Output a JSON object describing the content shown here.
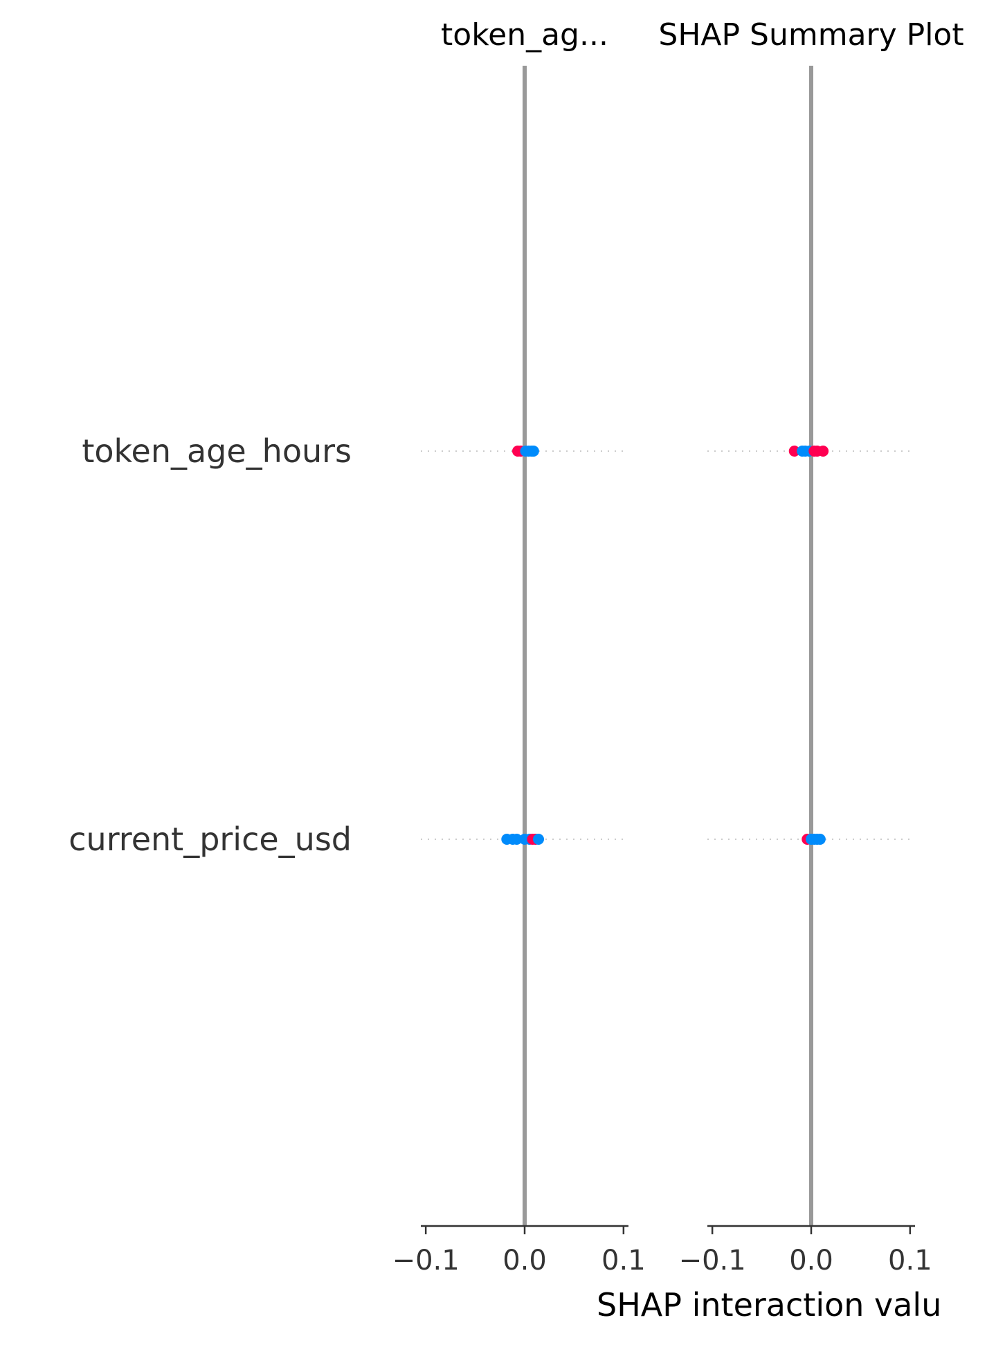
{
  "chart_data": {
    "type": "scatter",
    "kind": "shap-interaction-summary",
    "xlabel": "SHAP interaction valu",
    "features": [
      "token_age_hours",
      "current_price_usd"
    ],
    "panels": [
      {
        "title": "token_ag...",
        "xlim": [
          -0.105,
          0.105
        ],
        "xticks": [
          -0.1,
          0.0,
          0.1
        ],
        "xtick_labels": [
          "−0.1",
          "0.0",
          "0.1"
        ],
        "rows": [
          {
            "feature": "token_age_hours",
            "points": [
              {
                "x": -0.007,
                "color": "high"
              },
              {
                "x": -0.004,
                "color": "high"
              },
              {
                "x": 0.001,
                "color": "low"
              },
              {
                "x": 0.004,
                "color": "low"
              },
              {
                "x": 0.007,
                "color": "low"
              },
              {
                "x": 0.009,
                "color": "low"
              }
            ]
          },
          {
            "feature": "current_price_usd",
            "points": [
              {
                "x": -0.018,
                "color": "low"
              },
              {
                "x": -0.012,
                "color": "low"
              },
              {
                "x": -0.008,
                "color": "low"
              },
              {
                "x": 0.0,
                "color": "low"
              },
              {
                "x": 0.005,
                "color": "low"
              },
              {
                "x": 0.008,
                "color": "high"
              },
              {
                "x": 0.011,
                "color": "high"
              },
              {
                "x": 0.014,
                "color": "low"
              }
            ]
          }
        ]
      },
      {
        "title": "SHAP Summary Plot",
        "xlim": [
          -0.105,
          0.105
        ],
        "xticks": [
          -0.1,
          0.0,
          0.1
        ],
        "xtick_labels": [
          "−0.1",
          "0.0",
          "0.1"
        ],
        "rows": [
          {
            "feature": "token_age_hours",
            "points": [
              {
                "x": -0.017,
                "color": "high"
              },
              {
                "x": -0.009,
                "color": "low"
              },
              {
                "x": -0.006,
                "color": "low"
              },
              {
                "x": -0.002,
                "color": "low"
              },
              {
                "x": 0.003,
                "color": "high"
              },
              {
                "x": 0.006,
                "color": "high"
              },
              {
                "x": 0.012,
                "color": "high"
              }
            ]
          },
          {
            "feature": "current_price_usd",
            "points": [
              {
                "x": -0.004,
                "color": "high"
              },
              {
                "x": 0.0,
                "color": "low"
              },
              {
                "x": 0.003,
                "color": "low"
              },
              {
                "x": 0.006,
                "color": "low"
              },
              {
                "x": 0.009,
                "color": "low"
              }
            ]
          }
        ]
      }
    ],
    "colors": {
      "high": "#ff0051",
      "low": "#008bfb",
      "zero_line": "#999999",
      "row_guide": "#cccccc",
      "axis": "#333333",
      "text": "#333333"
    },
    "grid": false
  }
}
